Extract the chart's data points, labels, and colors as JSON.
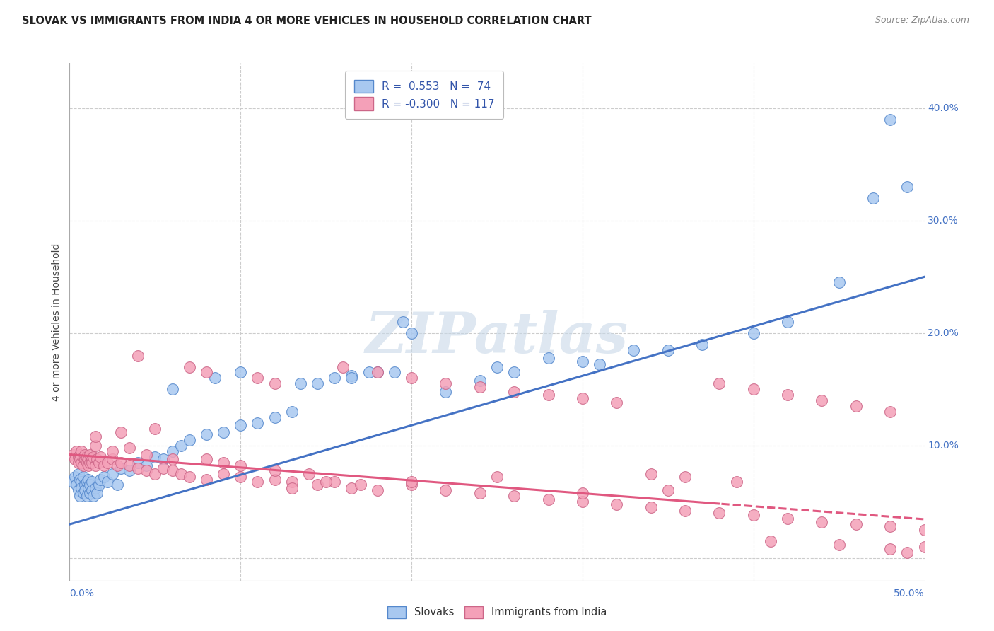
{
  "title": "SLOVAK VS IMMIGRANTS FROM INDIA 4 OR MORE VEHICLES IN HOUSEHOLD CORRELATION CHART",
  "source": "Source: ZipAtlas.com",
  "ylabel": "4 or more Vehicles in Household",
  "xlim": [
    0.0,
    0.5
  ],
  "ylim": [
    -0.02,
    0.44
  ],
  "blue_color": "#A8C8F0",
  "pink_color": "#F4A0B8",
  "blue_edge_color": "#5588CC",
  "pink_edge_color": "#CC6688",
  "blue_line_color": "#4472C4",
  "pink_line_color": "#E05880",
  "background_color": "#FFFFFF",
  "grid_color": "#CCCCCC",
  "watermark_color": "#C8D8E8",
  "blue_intercept": 0.03,
  "blue_slope": 0.44,
  "pink_intercept": 0.092,
  "pink_slope": -0.115,
  "slovaks_x": [
    0.002,
    0.003,
    0.004,
    0.005,
    0.005,
    0.006,
    0.006,
    0.007,
    0.007,
    0.008,
    0.008,
    0.009,
    0.009,
    0.01,
    0.01,
    0.011,
    0.011,
    0.012,
    0.012,
    0.013,
    0.013,
    0.014,
    0.015,
    0.016,
    0.017,
    0.018,
    0.02,
    0.022,
    0.025,
    0.028,
    0.03,
    0.035,
    0.04,
    0.045,
    0.05,
    0.055,
    0.06,
    0.065,
    0.07,
    0.08,
    0.09,
    0.1,
    0.11,
    0.12,
    0.13,
    0.145,
    0.155,
    0.165,
    0.18,
    0.2,
    0.22,
    0.24,
    0.25,
    0.26,
    0.28,
    0.3,
    0.31,
    0.33,
    0.35,
    0.37,
    0.4,
    0.42,
    0.45,
    0.47,
    0.49,
    0.135,
    0.165,
    0.175,
    0.19,
    0.195,
    0.06,
    0.085,
    0.1,
    0.48
  ],
  "slovaks_y": [
    0.068,
    0.072,
    0.065,
    0.075,
    0.06,
    0.07,
    0.055,
    0.068,
    0.062,
    0.058,
    0.072,
    0.065,
    0.06,
    0.068,
    0.055,
    0.062,
    0.07,
    0.058,
    0.065,
    0.06,
    0.068,
    0.055,
    0.062,
    0.058,
    0.065,
    0.07,
    0.072,
    0.068,
    0.075,
    0.065,
    0.08,
    0.078,
    0.085,
    0.082,
    0.09,
    0.088,
    0.095,
    0.1,
    0.105,
    0.11,
    0.112,
    0.118,
    0.12,
    0.125,
    0.13,
    0.155,
    0.16,
    0.162,
    0.165,
    0.2,
    0.148,
    0.158,
    0.17,
    0.165,
    0.178,
    0.175,
    0.172,
    0.185,
    0.185,
    0.19,
    0.2,
    0.21,
    0.245,
    0.32,
    0.33,
    0.155,
    0.16,
    0.165,
    0.165,
    0.21,
    0.15,
    0.16,
    0.165,
    0.39
  ],
  "india_x": [
    0.002,
    0.003,
    0.004,
    0.005,
    0.005,
    0.006,
    0.006,
    0.007,
    0.007,
    0.008,
    0.008,
    0.009,
    0.009,
    0.01,
    0.01,
    0.011,
    0.011,
    0.012,
    0.012,
    0.013,
    0.013,
    0.014,
    0.015,
    0.016,
    0.017,
    0.018,
    0.02,
    0.022,
    0.025,
    0.028,
    0.03,
    0.035,
    0.04,
    0.045,
    0.05,
    0.055,
    0.06,
    0.065,
    0.07,
    0.08,
    0.09,
    0.1,
    0.11,
    0.12,
    0.13,
    0.145,
    0.155,
    0.165,
    0.18,
    0.2,
    0.22,
    0.24,
    0.26,
    0.28,
    0.3,
    0.32,
    0.34,
    0.36,
    0.38,
    0.4,
    0.42,
    0.44,
    0.46,
    0.48,
    0.5,
    0.015,
    0.025,
    0.035,
    0.045,
    0.06,
    0.08,
    0.09,
    0.1,
    0.12,
    0.14,
    0.16,
    0.18,
    0.2,
    0.22,
    0.24,
    0.26,
    0.28,
    0.3,
    0.32,
    0.34,
    0.36,
    0.38,
    0.4,
    0.42,
    0.44,
    0.46,
    0.48,
    0.015,
    0.03,
    0.05,
    0.08,
    0.12,
    0.13,
    0.15,
    0.17,
    0.2,
    0.25,
    0.3,
    0.35,
    0.39,
    0.41,
    0.45,
    0.48,
    0.49,
    0.5,
    0.04,
    0.07,
    0.11
  ],
  "india_y": [
    0.092,
    0.088,
    0.095,
    0.09,
    0.085,
    0.092,
    0.088,
    0.085,
    0.095,
    0.09,
    0.082,
    0.088,
    0.092,
    0.085,
    0.09,
    0.082,
    0.088,
    0.085,
    0.092,
    0.088,
    0.085,
    0.09,
    0.082,
    0.088,
    0.085,
    0.09,
    0.082,
    0.085,
    0.088,
    0.082,
    0.085,
    0.082,
    0.08,
    0.078,
    0.075,
    0.08,
    0.078,
    0.075,
    0.072,
    0.07,
    0.075,
    0.072,
    0.068,
    0.07,
    0.068,
    0.065,
    0.068,
    0.062,
    0.06,
    0.065,
    0.06,
    0.058,
    0.055,
    0.052,
    0.05,
    0.048,
    0.045,
    0.042,
    0.04,
    0.038,
    0.035,
    0.032,
    0.03,
    0.028,
    0.025,
    0.1,
    0.095,
    0.098,
    0.092,
    0.088,
    0.088,
    0.085,
    0.082,
    0.078,
    0.075,
    0.17,
    0.165,
    0.16,
    0.155,
    0.152,
    0.148,
    0.145,
    0.142,
    0.138,
    0.075,
    0.072,
    0.155,
    0.15,
    0.145,
    0.14,
    0.135,
    0.13,
    0.108,
    0.112,
    0.115,
    0.165,
    0.155,
    0.062,
    0.068,
    0.065,
    0.068,
    0.072,
    0.058,
    0.06,
    0.068,
    0.015,
    0.012,
    0.008,
    0.005,
    0.01,
    0.18,
    0.17,
    0.16
  ]
}
